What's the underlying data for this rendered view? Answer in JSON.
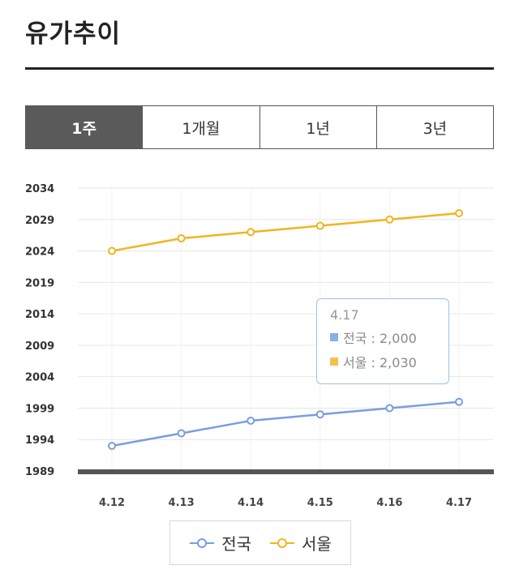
{
  "header": {
    "title": "유가추이"
  },
  "tabs": [
    {
      "label": "1주",
      "active": true
    },
    {
      "label": "1개월",
      "active": false
    },
    {
      "label": "1년",
      "active": false
    },
    {
      "label": "3년",
      "active": false
    }
  ],
  "tooltip": {
    "date": "4.17",
    "rows": [
      {
        "label": "전국 : 2,000"
      },
      {
        "label": "서울 : 2,030"
      }
    ]
  },
  "colors": {
    "national": "#7a9de0",
    "seoul": "#f0b51f",
    "baseline": "#555555",
    "grid": "#e6e6e6"
  },
  "chart_data": {
    "type": "line",
    "title": "",
    "categories": [
      "4.12",
      "4.13",
      "4.14",
      "4.15",
      "4.16",
      "4.17"
    ],
    "yticks": [
      2034,
      2029,
      2024,
      2019,
      2014,
      2009,
      2004,
      1999,
      1994,
      1989
    ],
    "ylim": [
      1989,
      2034
    ],
    "grid": true,
    "legend_position": "bottom",
    "series": [
      {
        "name": "전국",
        "values": [
          1993,
          1995,
          1997,
          1998,
          1999,
          2000
        ]
      },
      {
        "name": "서울",
        "values": [
          2024,
          2026,
          2027,
          2028,
          2029,
          2030
        ]
      }
    ]
  }
}
